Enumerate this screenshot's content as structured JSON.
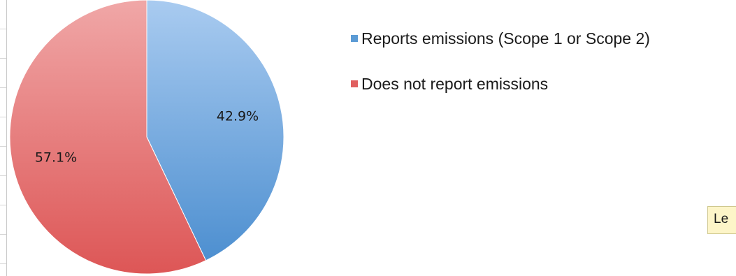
{
  "chart_data": {
    "type": "pie",
    "title": "",
    "slices": [
      {
        "label": "Reports emissions (Scope 1 or Scope 2)",
        "value": 42.9,
        "display": "42.9%",
        "color": "#5b9bd5",
        "color_light": "#a9cbf0"
      },
      {
        "label": "Does not report emissions",
        "value": 57.1,
        "display": "57.1%",
        "color": "#e06060",
        "color_light": "#f0a7a7"
      }
    ],
    "start_angle": "12 o'clock, clockwise",
    "legend_position": "right"
  },
  "legend": {
    "items": [
      {
        "label": "Reports emissions (Scope 1 or Scope 2)",
        "color": "#5b9bd5"
      },
      {
        "label": "Does not report emissions",
        "color": "#e06060"
      }
    ]
  },
  "tooltip": {
    "text": "Le"
  }
}
